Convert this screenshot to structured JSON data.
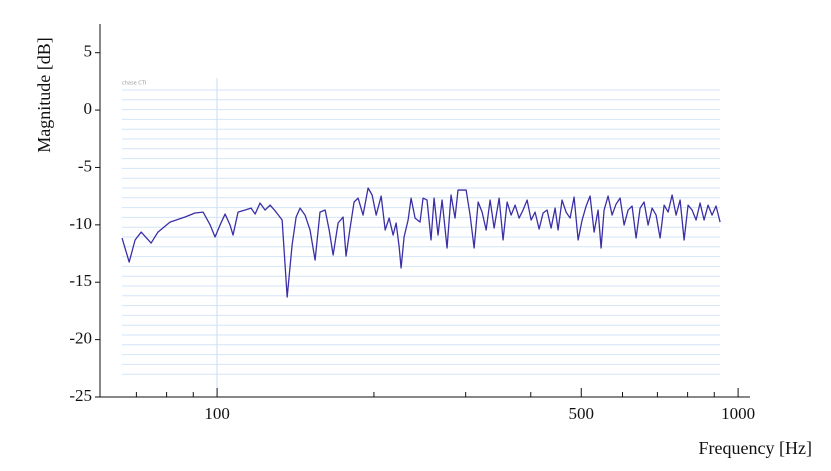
{
  "chart_data": {
    "type": "line",
    "watermark": "chase CTI",
    "x_label": "Frequency [Hz]",
    "y_label": "Magnitude [dB]",
    "x_scale": "log",
    "xlim": [
      59.6,
      1054
    ],
    "ylim": [
      -25,
      7.5
    ],
    "xticks": [
      100,
      500,
      1000
    ],
    "xminor_ticks": [
      70,
      80,
      90,
      200,
      300,
      400,
      600,
      700,
      800,
      900
    ],
    "yticks": [
      -25,
      -20,
      -15,
      -10,
      -5,
      0,
      5
    ],
    "series": [
      {
        "color": "#3b2fa6",
        "x": [
          65.7,
          67.8,
          69.6,
          71.5,
          74.7,
          77.0,
          81.2,
          86.8,
          90.7,
          94.0,
          97.0,
          99.1,
          101.3,
          103.6,
          105.9,
          107.3,
          109.7,
          113.2,
          116.2,
          118.3,
          120.9,
          123.6,
          126.4,
          129.8,
          133.3,
          136.3,
          139.3,
          141.8,
          144.3,
          147.5,
          150.8,
          154.2,
          157.6,
          161.2,
          164.1,
          167.0,
          170.7,
          174.5,
          176.8,
          180.0,
          183.2,
          186.5,
          190.6,
          194.9,
          198.4,
          202.0,
          206.5,
          210.2,
          213.9,
          217.7,
          220.6,
          223.6,
          225.5,
          228.5,
          232.6,
          235.7,
          239.9,
          245.2,
          248.5,
          252.9,
          257.4,
          260.9,
          265.5,
          270.3,
          276.3,
          281.2,
          286.2,
          290.0,
          295.3,
          300.6,
          305.9,
          311.4,
          317.0,
          322.6,
          328.4,
          334.2,
          340.2,
          347.8,
          353.9,
          360.3,
          366.7,
          373.3,
          379.9,
          386.6,
          393.6,
          400.6,
          407.7,
          415.0,
          422.4,
          429.9,
          437.6,
          445.4,
          451.3,
          459.3,
          467.6,
          475.9,
          484.4,
          493.1,
          501.9,
          510.9,
          519.9,
          529.2,
          538.6,
          545.8,
          553.1,
          562.9,
          573.0,
          583.2,
          593.6,
          604.2,
          615.0,
          625.9,
          637.1,
          648.5,
          660.0,
          671.8,
          683.8,
          696.0,
          708.4,
          721.1,
          733.9,
          747.0,
          760.3,
          773.9,
          787.7,
          801.7,
          816.0,
          830.5,
          845.3,
          860.4,
          875.7,
          891.3,
          907.2,
          923.5
        ],
        "values": [
          -11.15,
          -13.24,
          -11.32,
          -10.63,
          -11.59,
          -10.63,
          -9.76,
          -9.32,
          -8.97,
          -8.89,
          -10.02,
          -11.06,
          -10.02,
          -9.06,
          -10.02,
          -10.89,
          -8.89,
          -8.71,
          -8.54,
          -9.06,
          -8.1,
          -8.71,
          -8.28,
          -8.89,
          -9.58,
          -16.29,
          -11.76,
          -9.32,
          -8.54,
          -9.15,
          -10.45,
          -13.07,
          -8.89,
          -8.71,
          -10.45,
          -12.63,
          -9.84,
          -9.32,
          -12.72,
          -10.28,
          -8.01,
          -7.67,
          -9.15,
          -6.79,
          -7.4,
          -9.15,
          -7.49,
          -10.45,
          -9.41,
          -10.89,
          -9.84,
          -11.93,
          -13.76,
          -11.06,
          -9.58,
          -7.67,
          -9.41,
          -9.76,
          -7.67,
          -7.84,
          -11.32,
          -7.67,
          -10.89,
          -7.84,
          -12.02,
          -7.4,
          -9.41,
          -6.97,
          -6.97,
          -6.97,
          -9.15,
          -12.02,
          -8.01,
          -8.89,
          -10.45,
          -7.84,
          -10.28,
          -7.67,
          -11.32,
          -8.01,
          -9.15,
          -8.28,
          -9.41,
          -8.71,
          -7.84,
          -9.58,
          -8.89,
          -10.37,
          -8.97,
          -8.71,
          -10.28,
          -8.54,
          -10.45,
          -7.84,
          -8.89,
          -9.41,
          -7.58,
          -11.32,
          -9.58,
          -8.36,
          -7.49,
          -10.63,
          -8.71,
          -12.02,
          -8.71,
          -7.49,
          -9.15,
          -8.19,
          -7.67,
          -10.02,
          -8.71,
          -8.36,
          -11.15,
          -8.54,
          -8.01,
          -10.02,
          -8.54,
          -9.15,
          -11.15,
          -8.28,
          -8.89,
          -7.4,
          -9.15,
          -7.84,
          -11.32,
          -8.28,
          -8.71,
          -9.58,
          -8.1,
          -9.58,
          -8.28,
          -9.15,
          -8.36,
          -9.76
        ]
      }
    ]
  }
}
